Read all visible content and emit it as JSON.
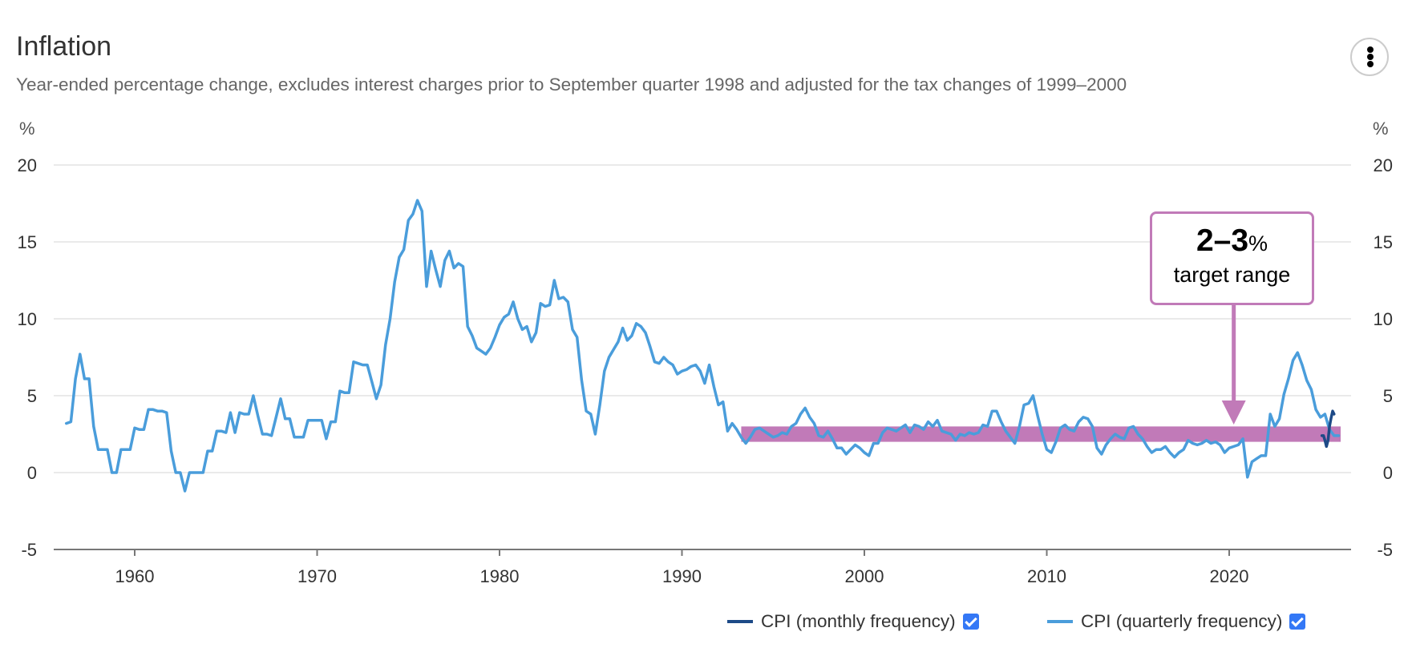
{
  "header": {
    "title": "Inflation",
    "subtitle": "Year-ended percentage change, excludes interest charges prior to September quarter 1998 and adjusted for the tax changes of 1999–2000",
    "menu_icon": "more-vertical-icon"
  },
  "callout": {
    "value": "2–3",
    "unit": "%",
    "label": "target range"
  },
  "legend": [
    {
      "label": "CPI (monthly frequency)",
      "color": "#1d4a87",
      "checked": true
    },
    {
      "label": "CPI (quarterly frequency)",
      "color": "#4a9ddb",
      "checked": true
    }
  ],
  "colors": {
    "target_band": "#c17ab8",
    "grid": "#e3e3e3",
    "axis": "#777777",
    "checkbox": "#3478f6"
  },
  "chart_data": {
    "type": "line",
    "title": "Inflation",
    "subtitle": "Year-ended percentage change, excludes interest charges prior to September quarter 1998 and adjusted for the tax changes of 1999–2000",
    "xlabel": "",
    "ylabel": "%",
    "ylabel_right": "%",
    "xlim": [
      1955.6,
      2026.4
    ],
    "ylim": [
      -5,
      20
    ],
    "x_ticks": [
      1960,
      1970,
      1980,
      1990,
      2000,
      2010,
      2020
    ],
    "x_tick_labels": [
      "1960",
      "1970",
      "1980",
      "1990",
      "2000",
      "2010",
      "2020"
    ],
    "y_ticks": [
      -5,
      0,
      5,
      10,
      15,
      20
    ],
    "y_tick_labels": [
      "-5",
      "0",
      "5",
      "10",
      "15",
      "20"
    ],
    "grid": true,
    "legend_position": "bottom-right",
    "target_band": {
      "from": 2,
      "to": 3,
      "start": 1993.25,
      "label": "2–3% target range",
      "arrow_at": 2020.25
    },
    "series": [
      {
        "name": "CPI (quarterly frequency)",
        "color": "#4a9ddb",
        "x_start": 1956.25,
        "x_step": 0.25,
        "values": [
          3.2,
          3.3,
          6.1,
          7.7,
          6.1,
          6.1,
          3.0,
          1.5,
          1.5,
          1.5,
          0.0,
          0.0,
          1.5,
          1.5,
          1.5,
          2.9,
          2.8,
          2.8,
          4.1,
          4.1,
          4.0,
          4.0,
          3.9,
          1.4,
          0.0,
          0.0,
          -1.2,
          0.0,
          0.0,
          0.0,
          0.0,
          1.4,
          1.4,
          2.7,
          2.7,
          2.6,
          3.9,
          2.6,
          3.9,
          3.8,
          3.8,
          5.0,
          3.7,
          2.5,
          2.5,
          2.4,
          3.6,
          4.8,
          3.5,
          3.5,
          2.3,
          2.3,
          2.3,
          3.4,
          3.4,
          3.4,
          3.4,
          2.2,
          3.3,
          3.3,
          5.3,
          5.2,
          5.2,
          7.2,
          7.1,
          7.0,
          7.0,
          5.9,
          4.8,
          5.7,
          8.3,
          10.0,
          12.4,
          14.0,
          14.5,
          16.4,
          16.8,
          17.7,
          17.0,
          12.1,
          14.4,
          13.2,
          12.1,
          13.8,
          14.4,
          13.3,
          13.6,
          13.4,
          9.5,
          8.9,
          8.1,
          7.9,
          7.7,
          8.1,
          8.8,
          9.6,
          10.1,
          10.3,
          11.1,
          10.0,
          9.3,
          9.5,
          8.5,
          9.1,
          11.0,
          10.8,
          10.9,
          12.5,
          11.3,
          11.4,
          11.1,
          9.3,
          8.8,
          6.0,
          4.0,
          3.8,
          2.5,
          4.4,
          6.6,
          7.5,
          8.0,
          8.5,
          9.4,
          8.6,
          8.9,
          9.7,
          9.5,
          9.1,
          8.2,
          7.2,
          7.1,
          7.5,
          7.2,
          7.0,
          6.4,
          6.6,
          6.7,
          6.9,
          7.0,
          6.6,
          5.8,
          7.0,
          5.6,
          4.4,
          4.6,
          2.7,
          3.2,
          2.8,
          2.3,
          1.9,
          2.3,
          2.8,
          2.9,
          2.7,
          2.5,
          2.3,
          2.4,
          2.6,
          2.5,
          3.0,
          3.2,
          3.8,
          4.2,
          3.6,
          3.2,
          2.4,
          2.3,
          2.7,
          2.2,
          1.6,
          1.6,
          1.2,
          1.5,
          1.8,
          1.6,
          1.3,
          1.1,
          1.9,
          1.9,
          2.6,
          2.9,
          2.8,
          2.7,
          2.9,
          3.1,
          2.6,
          3.1,
          3.0,
          2.8,
          3.3,
          3.0,
          3.4,
          2.7,
          2.6,
          2.5,
          2.1,
          2.5,
          2.4,
          2.6,
          2.5,
          2.6,
          3.1,
          3.0,
          4.0,
          4.0,
          3.3,
          2.7,
          2.3,
          1.9,
          3.0,
          4.4,
          4.5,
          5.0,
          3.7,
          2.5,
          1.5,
          1.3,
          2.0,
          2.9,
          3.1,
          2.8,
          2.7,
          3.3,
          3.6,
          3.5,
          3.0,
          1.6,
          1.2,
          1.8,
          2.2,
          2.5,
          2.3,
          2.2,
          2.9,
          3.0,
          2.5,
          2.2,
          1.7,
          1.3,
          1.5,
          1.5,
          1.7,
          1.3,
          1.0,
          1.3,
          1.5,
          2.1,
          1.9,
          1.8,
          1.9,
          2.1,
          1.9,
          2.0,
          1.8,
          1.3,
          1.6,
          1.7,
          1.8,
          2.2,
          -0.3,
          0.7,
          0.9,
          1.1,
          1.1,
          3.8,
          3.0,
          3.5,
          5.1,
          6.1,
          7.3,
          7.8,
          7.0,
          6.0,
          5.4,
          4.1,
          3.6,
          3.8,
          2.8,
          2.4,
          2.4
        ]
      },
      {
        "name": "CPI (monthly frequency)",
        "color": "#1d4a87",
        "x": [
          2025.08,
          2025.17,
          2025.25,
          2025.33,
          2025.42,
          2025.5,
          2025.58,
          2025.67,
          2025.75
        ],
        "values": [
          2.4,
          2.4,
          2.1,
          1.7,
          2.1,
          3.0,
          3.5,
          4.0,
          3.8
        ]
      }
    ]
  }
}
